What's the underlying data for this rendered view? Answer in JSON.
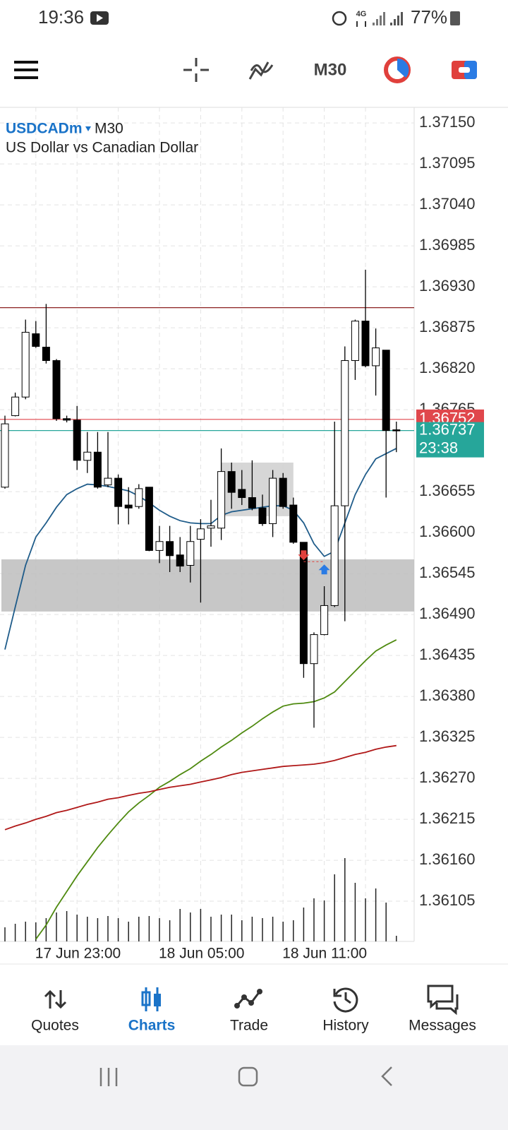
{
  "status_bar": {
    "time": "19:36",
    "network": "4G",
    "battery": "77%"
  },
  "toolbar": {
    "timeframe": "M30"
  },
  "chart_data": {
    "type": "candlestick",
    "symbol": "USDCADm",
    "timeframe": "M30",
    "description": "US Dollar vs Canadian Dollar",
    "categories": [
      null,
      null,
      null,
      "17 Jun 23:00",
      null,
      null,
      null,
      null,
      null,
      null,
      null,
      null,
      null,
      null,
      null,
      "18 Jun 05:00",
      null,
      null,
      null,
      null,
      null,
      null,
      null,
      null,
      null,
      null,
      null,
      "18 Jun 11:00",
      null,
      null,
      null,
      null,
      null,
      null,
      null,
      null,
      null,
      null,
      null
    ],
    "open": [
      1.36661,
      1.36757,
      1.36782,
      1.36867,
      1.36849,
      1.36831,
      1.36753,
      1.36751,
      1.36697,
      1.36708,
      1.36664,
      1.36673,
      1.36637,
      1.36635,
      1.36661,
      1.36576,
      1.36588,
      1.3657,
      1.36556,
      1.36591,
      1.36606,
      1.36606,
      1.36682,
      1.36658,
      1.36647,
      1.36633,
      1.36612,
      1.36673,
      1.36637,
      1.36587,
      1.36424,
      1.36463,
      1.36502,
      1.36636,
      1.36831,
      1.36884,
      1.36824,
      1.36845,
      1.36738
    ],
    "high": [
      1.36757,
      1.36788,
      1.36886,
      1.36884,
      1.36907,
      1.36833,
      1.36757,
      1.3677,
      1.36735,
      1.36735,
      1.36735,
      1.36678,
      1.36661,
      1.36665,
      1.36661,
      1.36609,
      1.36609,
      1.36594,
      1.36609,
      1.36618,
      1.36644,
      1.36713,
      1.36694,
      1.36684,
      1.36697,
      1.36651,
      1.36684,
      1.3668,
      1.36647,
      1.36587,
      1.36466,
      1.36528,
      1.36749,
      1.3685,
      1.36886,
      1.36953,
      1.36874,
      1.36845,
      1.36749
    ],
    "low": [
      1.36659,
      1.36756,
      1.36779,
      1.36848,
      1.36827,
      1.3675,
      1.36748,
      1.36684,
      1.3668,
      1.36659,
      1.36661,
      1.36611,
      1.36611,
      1.36632,
      1.36575,
      1.36559,
      1.36547,
      1.36547,
      1.36533,
      1.36506,
      1.36581,
      1.3659,
      1.36632,
      1.36637,
      1.3663,
      1.36609,
      1.36594,
      1.36632,
      1.36585,
      1.36405,
      1.36338,
      1.36462,
      1.365,
      1.36481,
      1.36805,
      1.36822,
      1.36784,
      1.36647,
      1.36708
    ],
    "close": [
      1.36746,
      1.36782,
      1.36869,
      1.3685,
      1.36831,
      1.36753,
      1.36751,
      1.36697,
      1.36708,
      1.36661,
      1.36673,
      1.36635,
      1.36633,
      1.36659,
      1.36576,
      1.36588,
      1.36569,
      1.36555,
      1.36588,
      1.36605,
      1.36609,
      1.36682,
      1.36654,
      1.36647,
      1.36633,
      1.36612,
      1.36673,
      1.36635,
      1.36587,
      1.36424,
      1.36463,
      1.36502,
      1.36636,
      1.36831,
      1.36884,
      1.36824,
      1.36848,
      1.36737,
      1.36737
    ],
    "volume": [
      20,
      25,
      28,
      27,
      33,
      41,
      43,
      38,
      35,
      33,
      36,
      33,
      28,
      35,
      36,
      33,
      30,
      46,
      41,
      46,
      35,
      38,
      38,
      30,
      35,
      33,
      35,
      28,
      30,
      48,
      61,
      58,
      95,
      118,
      83,
      61,
      75,
      55,
      8
    ],
    "bull_color": "#ffffff",
    "bear_color": "#000000",
    "lines": [
      {
        "color": "#1f5c8a",
        "values": [
          1.36443,
          1.365,
          1.36556,
          1.36594,
          1.36613,
          1.36634,
          1.36651,
          1.36659,
          1.36665,
          1.36664,
          1.36662,
          1.36659,
          1.36656,
          1.36649,
          1.3664,
          1.3663,
          1.36622,
          1.36616,
          1.36613,
          1.36612,
          1.36612,
          1.36623,
          1.36628,
          1.3663,
          1.36632,
          1.36634,
          1.36636,
          1.36636,
          1.3663,
          1.36613,
          1.36585,
          1.36568,
          1.36575,
          1.36613,
          1.36651,
          1.36678,
          1.36699,
          1.36706,
          1.36713
        ]
      },
      {
        "color": "#4f8a10",
        "values": [
          null,
          null,
          null,
          1.36054,
          1.36073,
          1.36097,
          1.36118,
          1.36139,
          1.36158,
          1.36177,
          1.36194,
          1.3621,
          1.36225,
          1.36237,
          1.36247,
          1.36258,
          1.36266,
          1.36275,
          1.36283,
          1.36293,
          1.36302,
          1.36312,
          1.36321,
          1.36331,
          1.3634,
          1.3635,
          1.36359,
          1.36367,
          1.3637,
          1.36371,
          1.36373,
          1.36378,
          1.36386,
          1.364,
          1.36414,
          1.36428,
          1.36441,
          1.36449,
          1.36456
        ]
      },
      {
        "color": "#b01818",
        "values": [
          1.36201,
          1.36206,
          1.3621,
          1.36215,
          1.36219,
          1.36224,
          1.36227,
          1.36231,
          1.36235,
          1.36238,
          1.36242,
          1.36244,
          1.36247,
          1.3625,
          1.36252,
          1.36255,
          1.36258,
          1.3626,
          1.36262,
          1.36265,
          1.36268,
          1.36271,
          1.36275,
          1.36278,
          1.3628,
          1.36282,
          1.36284,
          1.36286,
          1.36287,
          1.36288,
          1.36289,
          1.36291,
          1.36294,
          1.36298,
          1.36302,
          1.36305,
          1.36309,
          1.36312,
          1.36314
        ]
      }
    ],
    "zones": [
      {
        "low": 1.36494,
        "high": 1.36564,
        "color": "#bdbdbd"
      },
      {
        "low": 1.36622,
        "high": 1.36694,
        "from": 21,
        "to": 28,
        "color": "#cfcfcf"
      }
    ],
    "levels": [
      {
        "value": 1.36902,
        "color": "#8b2020"
      }
    ],
    "markers": [
      {
        "index": 29,
        "price": 1.36561,
        "color": "#e0403c",
        "direction": "down"
      },
      {
        "index": 31,
        "price": 1.36561,
        "color": "#2a7be4",
        "direction": "up"
      }
    ],
    "ask": 1.36752,
    "ask_color": "#e0474c",
    "bid": 1.36737,
    "bid_color": "#26a69a",
    "countdown": "23:38",
    "ylim": [
      1.36051,
      1.37171
    ],
    "yticks": [
      {
        "value": 1.3715,
        "label": "1.37150"
      },
      1.37095,
      {
        "value": 1.3704,
        "label": "1.37040"
      },
      1.36985,
      {
        "value": 1.3693,
        "label": "1.36930"
      },
      1.36875,
      {
        "value": 1.3682,
        "label": "1.36820"
      },
      1.36765,
      1.36655,
      {
        "value": 1.366,
        "label": "1.36600"
      },
      1.36545,
      {
        "value": 1.3649,
        "label": "1.36490"
      },
      1.36435,
      {
        "value": 1.3638,
        "label": "1.36380"
      },
      1.36325,
      {
        "value": 1.3627,
        "label": "1.36270"
      },
      1.36215,
      {
        "value": 1.3616,
        "label": "1.36160"
      },
      1.36105
    ],
    "grid": true
  },
  "nav": {
    "items": [
      "Quotes",
      "Charts",
      "Trade",
      "History",
      "Messages"
    ],
    "active": 1,
    "active_color": "#1a73c8"
  }
}
